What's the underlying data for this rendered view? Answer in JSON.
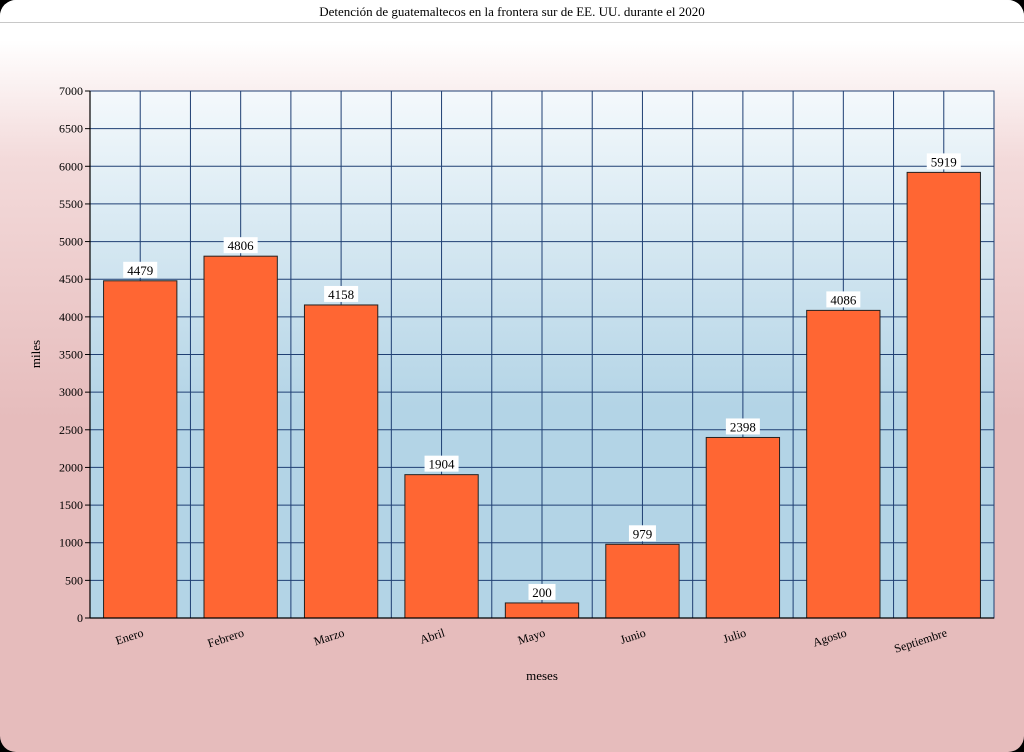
{
  "chart_data": {
    "type": "bar",
    "title": "Detención de guatemaltecos en la frontera sur de EE. UU. durante el 2020",
    "xlabel": "meses",
    "ylabel": "miles",
    "categories": [
      "Enero",
      "Febrero",
      "Marzo",
      "Abril",
      "Mayo",
      "Junio",
      "Julio",
      "Agosto",
      "Septiembre"
    ],
    "values": [
      4479,
      4806,
      4158,
      1904,
      200,
      979,
      2398,
      4086,
      5919
    ],
    "ylim": [
      0,
      7000
    ],
    "yticks": [
      0,
      500,
      1000,
      1500,
      2000,
      2500,
      3000,
      3500,
      4000,
      4500,
      5000,
      5500,
      6000,
      6500,
      7000
    ],
    "grid": true,
    "bar_color": "#ff6633",
    "plot_background": [
      "#f4f9fc",
      "#b3d4e6"
    ],
    "grid_color": "#1f3f73"
  }
}
